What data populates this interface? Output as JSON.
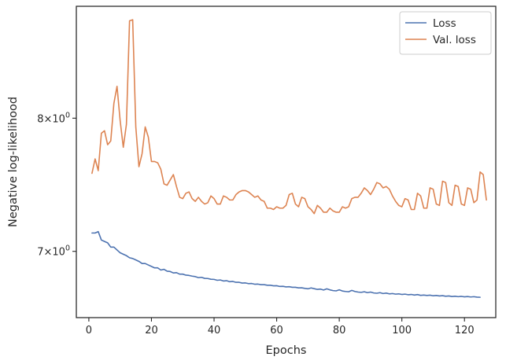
{
  "chart_data": {
    "type": "line",
    "xlabel": "Epochs",
    "ylabel": "Negative log-likelihood",
    "yscale": "log",
    "xlim": [
      -4,
      130
    ],
    "ylim": [
      6.55,
      8.95
    ],
    "grid": false,
    "legend_position": "top-right",
    "xticks": [
      0,
      20,
      40,
      60,
      80,
      100,
      120
    ],
    "xtick_labels": [
      "0",
      "20",
      "40",
      "60",
      "80",
      "100",
      "120"
    ],
    "yticks": [
      7,
      8
    ],
    "ytick_labels": [
      {
        "mantissa": "7",
        "base": "10",
        "exponent": "0"
      },
      {
        "mantissa": "8",
        "base": "10",
        "exponent": "0"
      }
    ],
    "x_start": 1,
    "x_step": 1,
    "series": [
      {
        "name": "Loss",
        "color": "#4c72b0",
        "values": [
          7.13,
          7.13,
          7.14,
          7.08,
          7.07,
          7.06,
          7.03,
          7.03,
          7.01,
          6.99,
          6.98,
          6.97,
          6.955,
          6.95,
          6.94,
          6.93,
          6.915,
          6.915,
          6.905,
          6.895,
          6.885,
          6.885,
          6.87,
          6.875,
          6.862,
          6.86,
          6.85,
          6.852,
          6.842,
          6.842,
          6.835,
          6.833,
          6.828,
          6.825,
          6.818,
          6.82,
          6.813,
          6.812,
          6.807,
          6.806,
          6.8,
          6.802,
          6.795,
          6.797,
          6.79,
          6.792,
          6.786,
          6.786,
          6.781,
          6.782,
          6.777,
          6.778,
          6.773,
          6.774,
          6.77,
          6.77,
          6.766,
          6.766,
          6.762,
          6.763,
          6.758,
          6.759,
          6.755,
          6.756,
          6.752,
          6.752,
          6.748,
          6.749,
          6.745,
          6.742,
          6.748,
          6.743,
          6.738,
          6.74,
          6.734,
          6.742,
          6.735,
          6.73,
          6.728,
          6.735,
          6.727,
          6.724,
          6.722,
          6.731,
          6.724,
          6.72,
          6.718,
          6.722,
          6.716,
          6.72,
          6.714,
          6.712,
          6.716,
          6.71,
          6.713,
          6.708,
          6.71,
          6.706,
          6.708,
          6.704,
          6.706,
          6.702,
          6.704,
          6.7,
          6.703,
          6.698,
          6.7,
          6.697,
          6.699,
          6.695,
          6.697,
          6.694,
          6.696,
          6.692,
          6.694,
          6.69,
          6.692,
          6.689,
          6.691,
          6.688,
          6.69,
          6.687,
          6.689,
          6.686,
          6.685
        ]
      },
      {
        "name": "Val. loss",
        "color": "#dd8452",
        "values": [
          7.57,
          7.68,
          7.59,
          7.88,
          7.9,
          7.79,
          7.82,
          8.12,
          8.26,
          7.98,
          7.77,
          7.95,
          8.82,
          8.83,
          7.93,
          7.62,
          7.72,
          7.93,
          7.85,
          7.66,
          7.66,
          7.65,
          7.6,
          7.49,
          7.48,
          7.52,
          7.56,
          7.47,
          7.39,
          7.38,
          7.42,
          7.43,
          7.38,
          7.36,
          7.39,
          7.36,
          7.34,
          7.35,
          7.4,
          7.38,
          7.34,
          7.34,
          7.4,
          7.39,
          7.37,
          7.37,
          7.41,
          7.43,
          7.44,
          7.44,
          7.43,
          7.41,
          7.39,
          7.4,
          7.37,
          7.36,
          7.31,
          7.31,
          7.3,
          7.32,
          7.31,
          7.31,
          7.33,
          7.41,
          7.42,
          7.34,
          7.32,
          7.39,
          7.38,
          7.32,
          7.3,
          7.27,
          7.33,
          7.31,
          7.28,
          7.28,
          7.31,
          7.29,
          7.28,
          7.28,
          7.32,
          7.31,
          7.32,
          7.38,
          7.39,
          7.39,
          7.42,
          7.46,
          7.44,
          7.41,
          7.45,
          7.5,
          7.49,
          7.46,
          7.47,
          7.45,
          7.4,
          7.36,
          7.33,
          7.32,
          7.38,
          7.37,
          7.3,
          7.3,
          7.42,
          7.4,
          7.31,
          7.31,
          7.46,
          7.45,
          7.34,
          7.33,
          7.51,
          7.5,
          7.35,
          7.33,
          7.48,
          7.47,
          7.34,
          7.33,
          7.46,
          7.45,
          7.35,
          7.37,
          7.58,
          7.56,
          7.37
        ]
      }
    ]
  }
}
